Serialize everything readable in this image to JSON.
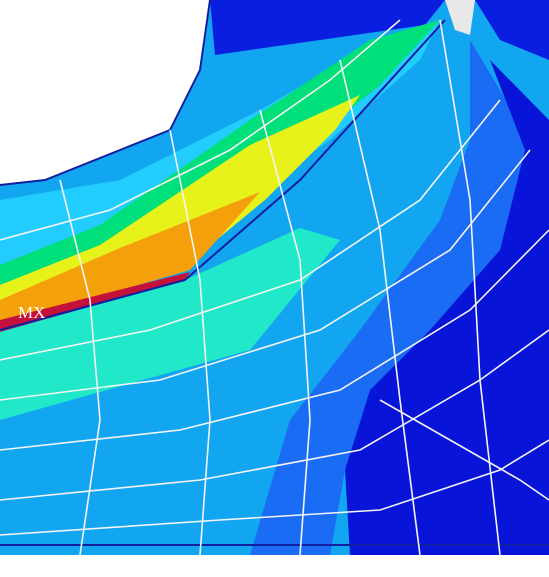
{
  "label": "MX"
}
